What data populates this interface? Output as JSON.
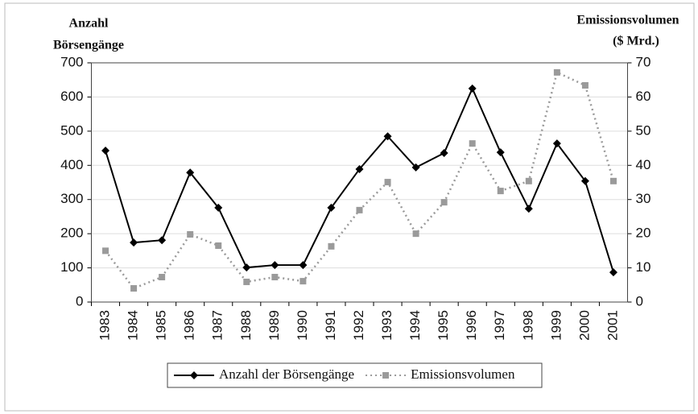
{
  "chart_data": {
    "type": "line",
    "y_label": [
      "Anzahl",
      "Börsengänge"
    ],
    "y2_label": [
      "Emissionsvolumen",
      "($ Mrd.)"
    ],
    "categories": [
      "1983",
      "1984",
      "1985",
      "1986",
      "1987",
      "1988",
      "1989",
      "1990",
      "1991",
      "1992",
      "1993",
      "1994",
      "1995",
      "1996",
      "1997",
      "1998",
      "1999",
      "2000",
      "2001"
    ],
    "series": [
      {
        "name": "Anzahl der Börsengänge",
        "color": "#000000",
        "values": [
          443,
          174,
          181,
          379,
          276,
          101,
          108,
          108,
          276,
          389,
          485,
          394,
          436,
          625,
          438,
          273,
          464,
          354,
          87
        ]
      },
      {
        "name": "Emissionsvolumen",
        "color": "#9a9a9a",
        "axis": "y2",
        "values": [
          15,
          4,
          7.3,
          19.8,
          16.5,
          5.9,
          7.3,
          6.1,
          16.3,
          26.9,
          35.1,
          20,
          29.2,
          46.4,
          32.5,
          35.4,
          67.2,
          63.4,
          35.4
        ]
      }
    ],
    "ylim": [
      0,
      700
    ],
    "yticks": [
      0,
      100,
      200,
      300,
      400,
      500,
      600,
      700
    ],
    "y2lim": [
      0,
      70
    ],
    "y2ticks": [
      0,
      10,
      20,
      30,
      40,
      50,
      60,
      70
    ],
    "grid": true,
    "legend": "bottom"
  }
}
